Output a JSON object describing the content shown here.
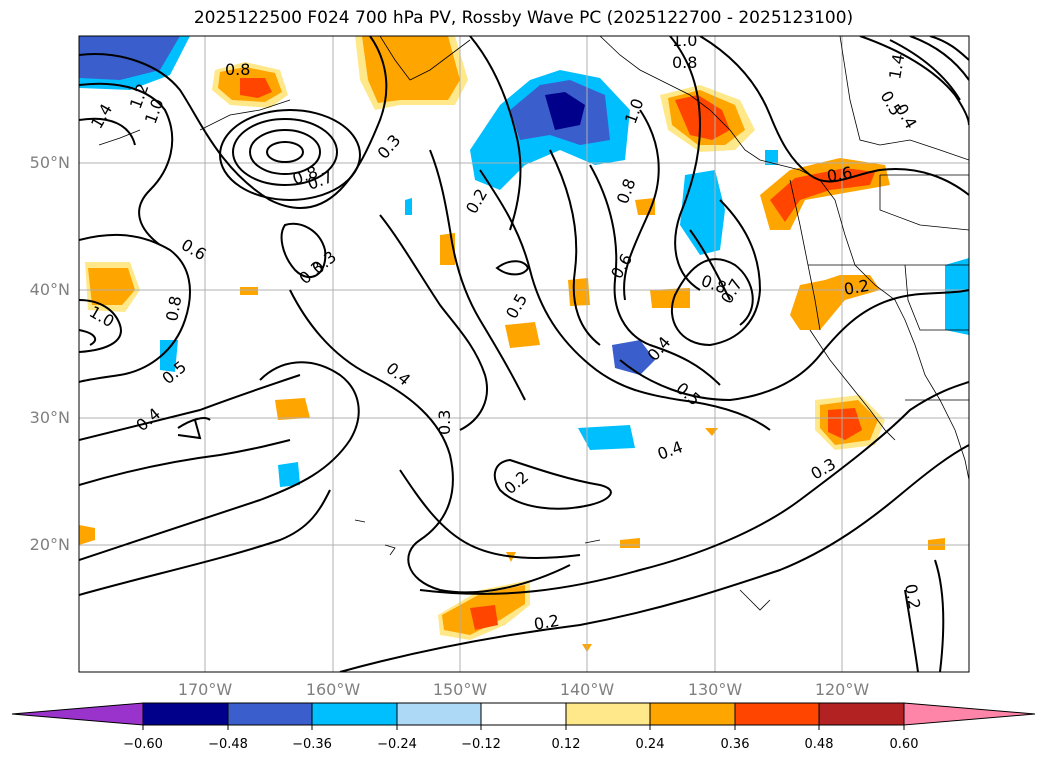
{
  "title": "2025122500 F024 700 hPa PV, Rossby Wave PC (2025122700 - 2025123100)",
  "latitudes": [
    "50°N",
    "40°N",
    "30°N",
    "20°N"
  ],
  "longitudes": [
    "170°W",
    "160°W",
    "150°W",
    "140°W",
    "130°W",
    "120°W"
  ],
  "colorbar": {
    "colors": [
      "#9933cc",
      "#00008b",
      "#3a5fcd",
      "#00bfff",
      "#add8f6",
      "#ffffff",
      "#ffe88a",
      "#ffa500",
      "#ff4500",
      "#b22222",
      "#ff85a8"
    ],
    "ticks": [
      "−0.60",
      "−0.48",
      "−0.36",
      "−0.24",
      "−0.12",
      "0.12",
      "0.24",
      "0.36",
      "0.48",
      "0.60"
    ]
  },
  "contour_labels": [
    "1.4",
    "1.2",
    "1.0",
    "0.8",
    "0.8",
    "0.7",
    "0.6",
    "0.3",
    "0.3",
    "0.2",
    "1.0",
    "0.8",
    "0.8",
    "1.0",
    "0.6",
    "0.8",
    "0.7",
    "0.6",
    "0.2",
    "0.4",
    "0.5",
    "0.5",
    "0.4",
    "0.5",
    "0.4",
    "0.3",
    "0.4",
    "0.2",
    "0.2",
    "0.3",
    "0.2",
    "0.8",
    "1.0",
    "1.4",
    "0.5",
    "0.4",
    "0.3"
  ]
}
